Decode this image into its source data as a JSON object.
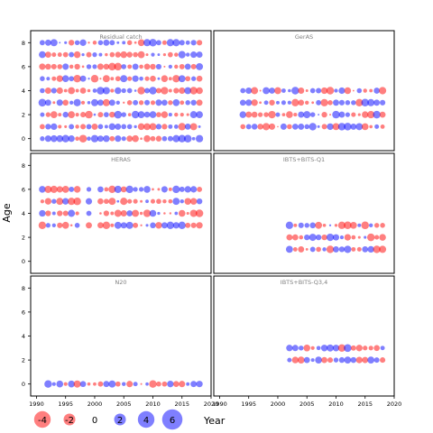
{
  "chart_data": {
    "type": "scatter",
    "subtype": "bubble",
    "xlabel": "Year",
    "ylabel": "Age",
    "xlim": [
      1989,
      2020
    ],
    "ylim": [
      -1,
      9
    ],
    "x_ticks": [
      1990,
      1995,
      2000,
      2005,
      2010,
      2015,
      2020
    ],
    "y_ticks": [
      0,
      2,
      4,
      6,
      8
    ],
    "grid": false,
    "colors": {
      "positive": "#0000ff",
      "negative": "#ff0000",
      "panel_title": "#808080"
    },
    "size_legend": {
      "placement": "bottom",
      "values": [
        -4,
        -2,
        0,
        2,
        4,
        6
      ],
      "labels": [
        "-4",
        "-2",
        "0",
        "2",
        "4",
        "6"
      ]
    },
    "panels": [
      {
        "title": "Residual catch",
        "years": [
          1991,
          2018
        ],
        "ages": [
          0,
          8
        ]
      },
      {
        "title": "GerAS",
        "years": [
          1994,
          2018
        ],
        "ages": [
          1,
          4
        ]
      },
      {
        "title": "HERAS",
        "years": [
          1991,
          2018
        ],
        "ages": [
          3,
          6
        ],
        "gaps": [
          [
            1998,
            1998
          ],
          [
            2000,
            2000
          ]
        ]
      },
      {
        "title": "IBTS+BITS-Q1",
        "years": [
          2002,
          2018
        ],
        "ages": [
          1,
          3
        ]
      },
      {
        "title": "N20",
        "years": [
          1992,
          2018
        ],
        "ages": [
          0,
          0
        ]
      },
      {
        "title": "IBTS+BITS-Q3,4",
        "years": [
          2002,
          2018
        ],
        "ages": [
          2,
          3
        ]
      }
    ]
  }
}
